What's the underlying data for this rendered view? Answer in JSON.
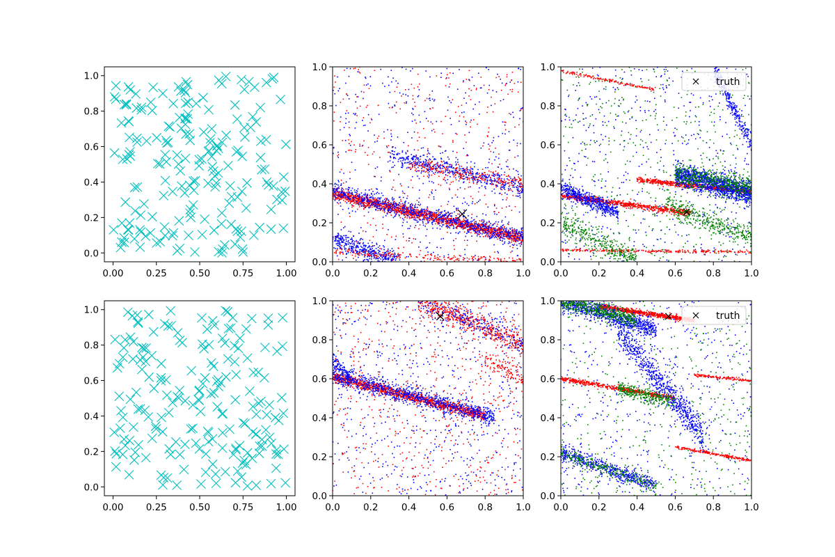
{
  "chart_data": [
    {
      "id": "r0c0",
      "type": "scatter",
      "title": "",
      "xlabel": "",
      "ylabel": "",
      "xlim": [
        -0.05,
        1.05
      ],
      "ylim": [
        -0.05,
        1.05
      ],
      "xticks": [
        0.0,
        0.25,
        0.5,
        0.75,
        1.0
      ],
      "xtick_labels": [
        "0.00",
        "0.25",
        "0.50",
        "0.75",
        "1.00"
      ],
      "yticks": [
        0.0,
        0.2,
        0.4,
        0.6,
        0.8,
        1.0
      ],
      "ytick_labels": [
        "0.0",
        "0.2",
        "0.4",
        "0.6",
        "0.8",
        "1.0"
      ],
      "grid": false,
      "series": [
        {
          "marker": "x",
          "color": "#00bfbf",
          "points": "uniform",
          "n": 200,
          "seed": 11
        }
      ]
    },
    {
      "id": "r0c1",
      "type": "scatter",
      "title": "",
      "xlabel": "",
      "ylabel": "",
      "xlim": [
        0.0,
        1.0
      ],
      "ylim": [
        0.0,
        1.0
      ],
      "xticks": [
        0.0,
        0.2,
        0.4,
        0.6,
        0.8,
        1.0
      ],
      "xtick_labels": [
        "0.0",
        "0.2",
        "0.4",
        "0.6",
        "0.8",
        "1.0"
      ],
      "yticks": [
        0.0,
        0.2,
        0.4,
        0.6,
        0.8,
        1.0
      ],
      "ytick_labels": [
        "0.0",
        "0.2",
        "0.4",
        "0.6",
        "0.8",
        "1.0"
      ],
      "grid": false,
      "bands": [
        {
          "color": "#ff0000",
          "x0": 0.0,
          "y0": 0.35,
          "x1": 1.0,
          "y1": 0.12,
          "width": 0.03,
          "n": 1600
        },
        {
          "color": "#0000ff",
          "x0": 0.0,
          "y0": 0.36,
          "x1": 1.0,
          "y1": 0.12,
          "width": 0.05,
          "n": 900
        },
        {
          "color": "#0000ff",
          "x0": 0.3,
          "y0": 0.55,
          "x1": 1.0,
          "y1": 0.38,
          "width": 0.05,
          "n": 500
        },
        {
          "color": "#ff0000",
          "x0": 0.4,
          "y0": 0.5,
          "x1": 1.0,
          "y1": 0.4,
          "width": 0.04,
          "n": 250
        },
        {
          "color": "#0000ff",
          "x0": 0.0,
          "y0": 0.12,
          "x1": 0.35,
          "y1": 0.0,
          "width": 0.05,
          "n": 400
        },
        {
          "color": "#ff0000",
          "x0": 0.0,
          "y0": 0.05,
          "x1": 1.0,
          "y1": 0.0,
          "width": 0.02,
          "n": 200
        }
      ],
      "noise": [
        {
          "color": "#0000ff",
          "n": 500
        },
        {
          "color": "#ff0000",
          "n": 350
        }
      ],
      "truth_marker": {
        "x": 0.68,
        "y": 0.245,
        "size": "large"
      }
    },
    {
      "id": "r0c2",
      "type": "scatter",
      "title": "",
      "xlabel": "",
      "ylabel": "",
      "xlim": [
        0.0,
        1.0
      ],
      "ylim": [
        0.0,
        1.0
      ],
      "xticks": [
        0.0,
        0.2,
        0.4,
        0.6,
        0.8,
        1.0
      ],
      "xtick_labels": [
        "0.0",
        "0.2",
        "0.4",
        "0.6",
        "0.8",
        "1.0"
      ],
      "yticks": [
        0.0,
        0.2,
        0.4,
        0.6,
        0.8,
        1.0
      ],
      "ytick_labels": [
        "0.0",
        "0.2",
        "0.4",
        "0.6",
        "0.8",
        "1.0"
      ],
      "grid": false,
      "bands": [
        {
          "color": "#ff0000",
          "x0": 0.0,
          "y0": 0.34,
          "x1": 0.68,
          "y1": 0.25,
          "width": 0.015,
          "n": 700
        },
        {
          "color": "#ff0000",
          "x0": 0.4,
          "y0": 0.42,
          "x1": 1.0,
          "y1": 0.36,
          "width": 0.013,
          "n": 600
        },
        {
          "color": "#ff0000",
          "x0": 0.0,
          "y0": 0.06,
          "x1": 1.0,
          "y1": 0.05,
          "width": 0.008,
          "n": 250
        },
        {
          "color": "#ff0000",
          "x0": 0.0,
          "y0": 0.98,
          "x1": 0.5,
          "y1": 0.88,
          "width": 0.008,
          "n": 150
        },
        {
          "color": "#0000ff",
          "x0": 0.0,
          "y0": 0.38,
          "x1": 0.3,
          "y1": 0.25,
          "width": 0.04,
          "n": 500
        },
        {
          "color": "#0000ff",
          "x0": 0.6,
          "y0": 0.45,
          "x1": 1.0,
          "y1": 0.35,
          "width": 0.06,
          "n": 1200
        },
        {
          "color": "#008000",
          "x0": 0.6,
          "y0": 0.45,
          "x1": 1.0,
          "y1": 0.38,
          "width": 0.06,
          "n": 500
        },
        {
          "color": "#008000",
          "x0": 0.55,
          "y0": 0.3,
          "x1": 1.0,
          "y1": 0.12,
          "width": 0.06,
          "n": 350
        },
        {
          "color": "#008000",
          "x0": 0.0,
          "y0": 0.2,
          "x1": 0.4,
          "y1": 0.0,
          "width": 0.06,
          "n": 350
        },
        {
          "color": "#0000ff",
          "x0": 0.8,
          "y0": 1.0,
          "x1": 1.0,
          "y1": 0.6,
          "width": 0.05,
          "n": 300
        }
      ],
      "noise": [
        {
          "color": "#0000ff",
          "n": 500
        },
        {
          "color": "#008000",
          "n": 500
        }
      ],
      "truth_marker": {
        "x": 0.66,
        "y": 0.255,
        "size": "small"
      },
      "legend": {
        "position": "upper right",
        "entries": [
          {
            "marker": "x",
            "label": "truth"
          }
        ]
      }
    },
    {
      "id": "r1c0",
      "type": "scatter",
      "title": "",
      "xlabel": "",
      "ylabel": "",
      "xlim": [
        -0.05,
        1.05
      ],
      "ylim": [
        -0.05,
        1.05
      ],
      "xticks": [
        0.0,
        0.25,
        0.5,
        0.75,
        1.0
      ],
      "xtick_labels": [
        "0.00",
        "0.25",
        "0.50",
        "0.75",
        "1.00"
      ],
      "yticks": [
        0.0,
        0.2,
        0.4,
        0.6,
        0.8,
        1.0
      ],
      "ytick_labels": [
        "0.0",
        "0.2",
        "0.4",
        "0.6",
        "0.8",
        "1.0"
      ],
      "grid": false,
      "series": [
        {
          "marker": "x",
          "color": "#00bfbf",
          "points": "uniform",
          "n": 200,
          "seed": 23
        }
      ]
    },
    {
      "id": "r1c1",
      "type": "scatter",
      "title": "",
      "xlabel": "",
      "ylabel": "",
      "xlim": [
        0.0,
        1.0
      ],
      "ylim": [
        0.0,
        1.0
      ],
      "xticks": [
        0.0,
        0.2,
        0.4,
        0.6,
        0.8,
        1.0
      ],
      "xtick_labels": [
        "0.0",
        "0.2",
        "0.4",
        "0.6",
        "0.8",
        "1.0"
      ],
      "yticks": [
        0.0,
        0.2,
        0.4,
        0.6,
        0.8,
        1.0
      ],
      "ytick_labels": [
        "0.0",
        "0.2",
        "0.4",
        "0.6",
        "0.8",
        "1.0"
      ],
      "grid": false,
      "bands": [
        {
          "color": "#ff0000",
          "x0": 0.0,
          "y0": 0.61,
          "x1": 0.8,
          "y1": 0.41,
          "width": 0.025,
          "n": 1200
        },
        {
          "color": "#0000ff",
          "x0": 0.0,
          "y0": 0.62,
          "x1": 0.85,
          "y1": 0.4,
          "width": 0.045,
          "n": 900
        },
        {
          "color": "#ff0000",
          "x0": 0.45,
          "y0": 1.0,
          "x1": 1.0,
          "y1": 0.78,
          "width": 0.06,
          "n": 500
        },
        {
          "color": "#0000ff",
          "x0": 0.45,
          "y0": 1.0,
          "x1": 1.0,
          "y1": 0.78,
          "width": 0.06,
          "n": 200
        },
        {
          "color": "#ff0000",
          "x0": 0.8,
          "y0": 0.7,
          "x1": 1.0,
          "y1": 0.6,
          "width": 0.04,
          "n": 100
        },
        {
          "color": "#0000ff",
          "x0": 0.0,
          "y0": 0.7,
          "x1": 0.1,
          "y1": 0.6,
          "width": 0.04,
          "n": 100
        }
      ],
      "noise": [
        {
          "color": "#0000ff",
          "n": 600
        },
        {
          "color": "#ff0000",
          "n": 600
        }
      ],
      "truth_marker": {
        "x": 0.565,
        "y": 0.92,
        "size": "medium"
      }
    },
    {
      "id": "r1c2",
      "type": "scatter",
      "title": "",
      "xlabel": "",
      "ylabel": "",
      "xlim": [
        0.0,
        1.0
      ],
      "ylim": [
        0.0,
        1.0
      ],
      "xticks": [
        0.0,
        0.2,
        0.4,
        0.6,
        0.8,
        1.0
      ],
      "xtick_labels": [
        "0.0",
        "0.2",
        "0.4",
        "0.6",
        "0.8",
        "1.0"
      ],
      "yticks": [
        0.0,
        0.2,
        0.4,
        0.6,
        0.8,
        1.0
      ],
      "ytick_labels": [
        "0.0",
        "0.2",
        "0.4",
        "0.6",
        "0.8",
        "1.0"
      ],
      "grid": false,
      "bands": [
        {
          "color": "#ff0000",
          "x0": 0.2,
          "y0": 0.97,
          "x1": 0.7,
          "y1": 0.9,
          "width": 0.012,
          "n": 700
        },
        {
          "color": "#ff0000",
          "x0": 0.0,
          "y0": 0.6,
          "x1": 0.6,
          "y1": 0.5,
          "width": 0.012,
          "n": 500
        },
        {
          "color": "#ff0000",
          "x0": 0.6,
          "y0": 0.25,
          "x1": 1.0,
          "y1": 0.18,
          "width": 0.008,
          "n": 200
        },
        {
          "color": "#ff0000",
          "x0": 0.7,
          "y0": 0.62,
          "x1": 1.0,
          "y1": 0.59,
          "width": 0.008,
          "n": 120
        },
        {
          "color": "#0000ff",
          "x0": 0.0,
          "y0": 1.0,
          "x1": 0.5,
          "y1": 0.85,
          "width": 0.05,
          "n": 800
        },
        {
          "color": "#008000",
          "x0": 0.0,
          "y0": 1.0,
          "x1": 0.4,
          "y1": 0.9,
          "width": 0.04,
          "n": 500
        },
        {
          "color": "#0000ff",
          "x0": 0.3,
          "y0": 0.85,
          "x1": 0.75,
          "y1": 0.3,
          "width": 0.08,
          "n": 700
        },
        {
          "color": "#008000",
          "x0": 0.3,
          "y0": 0.55,
          "x1": 0.6,
          "y1": 0.48,
          "width": 0.04,
          "n": 300
        },
        {
          "color": "#0000ff",
          "x0": 0.0,
          "y0": 0.22,
          "x1": 0.5,
          "y1": 0.05,
          "width": 0.04,
          "n": 500
        },
        {
          "color": "#008000",
          "x0": 0.0,
          "y0": 0.22,
          "x1": 0.5,
          "y1": 0.05,
          "width": 0.04,
          "n": 250
        }
      ],
      "noise": [
        {
          "color": "#0000ff",
          "n": 500
        },
        {
          "color": "#008000",
          "n": 400
        }
      ],
      "truth_marker": {
        "x": 0.565,
        "y": 0.92,
        "size": "small"
      },
      "legend": {
        "position": "upper right",
        "entries": [
          {
            "marker": "x",
            "label": "truth"
          }
        ]
      }
    }
  ]
}
